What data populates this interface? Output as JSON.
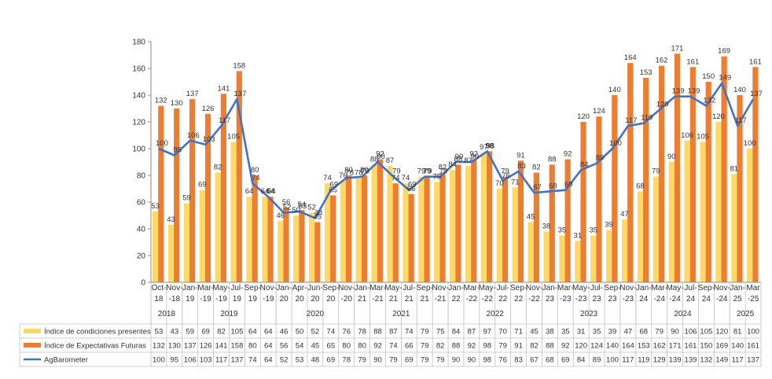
{
  "chart_data": {
    "type": "bar+line",
    "title": "",
    "xlabel": "",
    "ylabel": "",
    "ylim": [
      0,
      180
    ],
    "yticks": [
      0,
      20,
      40,
      60,
      80,
      100,
      120,
      140,
      160,
      180
    ],
    "grid": false,
    "legend": "table-below",
    "categories": [
      "Oct-18",
      "Nov-18",
      "Jan-19",
      "Mar-19",
      "May-19",
      "Jul-19",
      "Sep-19",
      "Nov-19",
      "Jan-20",
      "Apr-20",
      "Jun-20",
      "Sep-20",
      "Nov-20",
      "Jan-21",
      "Mar-21",
      "May-21",
      "Jul-21",
      "Sep-21",
      "Nov-21",
      "Jan-22",
      "Mar-22",
      "May-22",
      "Jul-22",
      "Sep-22",
      "Nov-22",
      "Jan-23",
      "Mar-23",
      "May-23",
      "Jul-23",
      "Sep-23",
      "Nov-23",
      "Jan-24",
      "Mar-24",
      "May-24",
      "Jul-24",
      "Sep-24",
      "Nov-24",
      "Jan-25",
      "Mar-25"
    ],
    "tick_top": [
      "Oct-",
      "Nov-",
      "Jan-",
      "Mar-",
      "May-",
      "Jul-",
      "Sep-",
      "Nov-",
      "Jan-",
      "Apr-",
      "Jun-",
      "Sep-",
      "Nov-",
      "Jan-",
      "Mar-",
      "May-",
      "Jul-",
      "Sep-",
      "Nov-",
      "Jan-",
      "Mar-",
      "May-",
      "Jul-",
      "Sep-",
      "Nov-",
      "Jan-",
      "Mar-",
      "May-",
      "Jul-",
      "Sep-",
      "Nov-",
      "Jan-",
      "Mar-",
      "May-",
      "Jul-",
      "Sep-",
      "Nov-",
      "Jan-",
      "Mar"
    ],
    "tick_bottom": [
      "18",
      "-18",
      "19",
      "-19",
      "-19",
      "19",
      "19",
      "-19",
      "20",
      "20",
      "20",
      "20",
      "-20",
      "21",
      "-21",
      "21",
      "21",
      "21",
      "-21",
      "22",
      "-22",
      "-22",
      "22",
      "22",
      "-22",
      "23",
      "-23",
      "-23",
      "23",
      "23",
      "-23",
      "24",
      "-24",
      "-24",
      "24",
      "24",
      "-24",
      "25",
      "-25"
    ],
    "years": [
      {
        "label": "2018",
        "start": 0,
        "end": 1
      },
      {
        "label": "2019",
        "start": 2,
        "end": 7
      },
      {
        "label": "2020",
        "start": 8,
        "end": 12
      },
      {
        "label": "2021",
        "start": 13,
        "end": 18
      },
      {
        "label": "2022",
        "start": 19,
        "end": 24
      },
      {
        "label": "2023",
        "start": 25,
        "end": 30
      },
      {
        "label": "2024",
        "start": 31,
        "end": 36
      },
      {
        "label": "2025",
        "start": 37,
        "end": 38
      }
    ],
    "series": [
      {
        "name": "Índice de condiciones presentes",
        "kind": "bar",
        "color": "#FFD966",
        "values": [
          53,
          43,
          59,
          69,
          82,
          105,
          64,
          64,
          46,
          50,
          52,
          74,
          76,
          78,
          88,
          87,
          74,
          79,
          75,
          84,
          87,
          97,
          70,
          71,
          45,
          38,
          35,
          31,
          35,
          39,
          47,
          68,
          79,
          90,
          106,
          105,
          120,
          81,
          100
        ]
      },
      {
        "name": "Índice de Expectativas Futuras",
        "kind": "bar",
        "color": "#ED7D31",
        "values": [
          132,
          130,
          137,
          126,
          141,
          158,
          80,
          64,
          56,
          54,
          45,
          65,
          80,
          80,
          92,
          74,
          66,
          79,
          82,
          88,
          92,
          98,
          79,
          91,
          82,
          88,
          92,
          120,
          124,
          140,
          164,
          153,
          162,
          171,
          161,
          150,
          169,
          140,
          161
        ]
      },
      {
        "name": "AgBarometer",
        "kind": "line",
        "color": "#4472C4",
        "values": [
          100,
          95,
          106,
          103,
          117,
          137,
          74,
          64,
          52,
          53,
          48,
          69,
          78,
          79,
          90,
          79,
          69,
          79,
          79,
          90,
          90,
          98,
          76,
          83,
          67,
          68,
          69,
          84,
          89,
          100,
          117,
          119,
          129,
          139,
          139,
          132,
          149,
          117,
          137
        ]
      }
    ]
  }
}
